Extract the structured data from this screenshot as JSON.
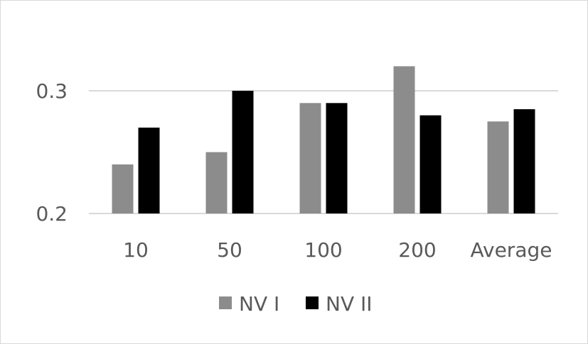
{
  "chart_data": {
    "type": "bar",
    "categories": [
      "10",
      "50",
      "100",
      "200",
      "Average"
    ],
    "series": [
      {
        "name": "NV I",
        "values": [
          0.24,
          0.25,
          0.29,
          0.32,
          0.275
        ],
        "color": "#8c8c8c"
      },
      {
        "name": "NV II",
        "values": [
          0.27,
          0.3,
          0.29,
          0.28,
          0.285
        ],
        "color": "#000000"
      }
    ],
    "title": "",
    "xlabel": "",
    "ylabel": "",
    "ylim": [
      0.2,
      0.33
    ],
    "yticks": [
      "0.2",
      "0.3"
    ],
    "grid": true,
    "legend_position": "bottom",
    "gridline_color": "#d9d9d9"
  }
}
